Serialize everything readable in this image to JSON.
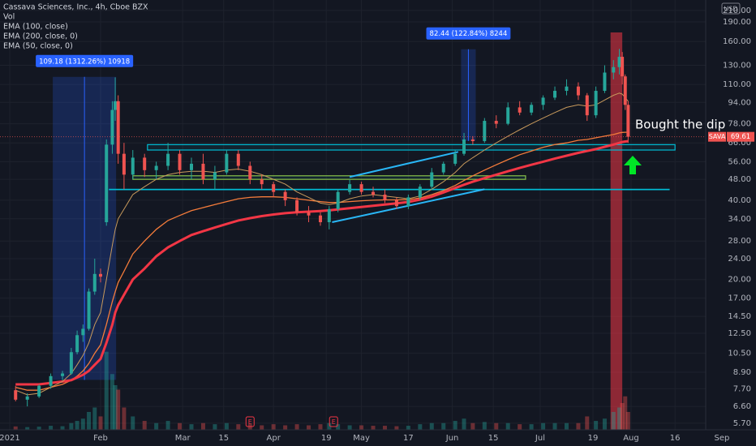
{
  "chart_data": {
    "type": "candlestick",
    "title": "Cassava Sciences, Inc., 4h, Cboe BZX",
    "volume_label": "Vol",
    "currency": "USD",
    "symbol": "SAVA",
    "last": 69.61,
    "annotation": "Bought the dip",
    "up_color": "#26a69a",
    "down_color": "#ef5350",
    "log_scale": true,
    "ylim": [
      5.38,
      230
    ],
    "xlim": [
      -3.32,
      254.63
    ],
    "vlim": [
      0,
      40
    ],
    "yticks": [
      {
        "value": 210,
        "label": "210.00"
      },
      {
        "value": 190,
        "label": "190.00"
      },
      {
        "value": 160,
        "label": "160.00"
      },
      {
        "value": 130,
        "label": "130.00"
      },
      {
        "value": 110,
        "label": "110.00"
      },
      {
        "value": 94,
        "label": "94.00"
      },
      {
        "value": 78,
        "label": "78.00"
      },
      {
        "value": 66,
        "label": "66.00"
      },
      {
        "value": 56,
        "label": "56.00"
      },
      {
        "value": 48,
        "label": "48.00"
      },
      {
        "value": 40,
        "label": "40.00"
      },
      {
        "value": 34,
        "label": "34.00"
      },
      {
        "value": 28,
        "label": "28.00"
      },
      {
        "value": 24,
        "label": "24.00"
      },
      {
        "value": 20,
        "label": "20.00"
      },
      {
        "value": 17,
        "label": "17.00"
      },
      {
        "value": 14.5,
        "label": "14.50"
      },
      {
        "value": 12.5,
        "label": "12.50"
      },
      {
        "value": 10.5,
        "label": "10.50"
      },
      {
        "value": 8.9,
        "label": "8.90"
      },
      {
        "value": 7.7,
        "label": "7.70"
      },
      {
        "value": 6.6,
        "label": "6.60"
      },
      {
        "value": 5.7,
        "label": "5.70"
      }
    ],
    "xticks": [
      {
        "value": 0,
        "label": "2021"
      },
      {
        "value": 31,
        "label": "Feb"
      },
      {
        "value": 59,
        "label": "Mar"
      },
      {
        "value": 73,
        "label": "15"
      },
      {
        "value": 90,
        "label": "Apr"
      },
      {
        "value": 108,
        "label": "19"
      },
      {
        "value": 120,
        "label": "May"
      },
      {
        "value": 136,
        "label": "17"
      },
      {
        "value": 151,
        "label": "Jun"
      },
      {
        "value": 165,
        "label": "15"
      },
      {
        "value": 181,
        "label": "Jul"
      },
      {
        "value": 199,
        "label": "19"
      },
      {
        "value": 212,
        "label": "Aug"
      },
      {
        "value": 227,
        "label": "16"
      },
      {
        "value": 243,
        "label": "Sep"
      }
    ],
    "x": [
      2,
      6,
      10,
      14,
      18,
      21,
      23,
      25,
      27,
      29,
      31,
      33,
      35,
      36,
      37,
      39,
      42,
      46,
      50,
      54,
      58,
      62,
      66,
      70,
      74,
      78,
      82,
      86,
      90,
      94,
      98,
      102,
      106,
      109,
      112,
      116,
      120,
      124,
      128,
      132,
      136,
      140,
      144,
      148,
      152,
      155,
      158,
      162,
      166,
      170,
      174,
      178,
      182,
      186,
      190,
      194,
      197,
      200,
      203,
      206,
      208,
      209,
      210,
      211
    ],
    "open": [
      7.6,
      7.0,
      7.2,
      7.9,
      8.6,
      8.8,
      10.6,
      12.3,
      13.0,
      18.0,
      21.0,
      33,
      65,
      88,
      95,
      60,
      50,
      58,
      52,
      54,
      60,
      52,
      55,
      48,
      51,
      60,
      54,
      48,
      46,
      43,
      40,
      36,
      35,
      33,
      37,
      43,
      46,
      43,
      42,
      40,
      38,
      41,
      45,
      51,
      55,
      60,
      68,
      67,
      80,
      78,
      90,
      86,
      92,
      98,
      104,
      108,
      100,
      84,
      104,
      122,
      128,
      140,
      118,
      92
    ],
    "high": [
      7.9,
      7.4,
      8.0,
      8.8,
      9.0,
      11.0,
      12.8,
      13.5,
      18.5,
      24.0,
      22.0,
      68,
      95,
      117,
      100,
      66,
      62,
      60,
      56,
      66,
      62,
      58,
      60,
      54,
      62,
      62,
      56,
      50,
      47,
      44,
      41,
      38,
      36,
      38,
      44,
      48,
      47,
      45,
      44,
      41,
      42,
      46,
      53,
      56,
      62,
      72,
      70,
      82,
      84,
      94,
      95,
      94,
      100,
      108,
      115,
      112,
      102,
      108,
      130,
      136,
      150,
      146,
      120,
      95
    ],
    "low": [
      6.9,
      6.6,
      7.1,
      7.7,
      8.3,
      8.7,
      10.4,
      11.6,
      12.8,
      17.5,
      19.5,
      32,
      60,
      80,
      55,
      44,
      48,
      49,
      48,
      52,
      50,
      48,
      46,
      44,
      50,
      52,
      46,
      44,
      41,
      38,
      35,
      33,
      32,
      31,
      36,
      42,
      42,
      41,
      39,
      37,
      37,
      40,
      44,
      50,
      54,
      59,
      65,
      66,
      75,
      77,
      84,
      84,
      88,
      96,
      100,
      96,
      80,
      82,
      102,
      115,
      120,
      110,
      88,
      66
    ],
    "close": [
      7.0,
      7.2,
      7.9,
      8.6,
      8.8,
      10.6,
      12.3,
      13.0,
      18.0,
      21.0,
      20.5,
      65,
      88,
      95,
      60,
      50,
      58,
      52,
      54,
      60,
      52,
      55,
      48,
      51,
      60,
      54,
      48,
      46,
      43,
      40,
      36,
      35,
      33,
      37,
      43,
      46,
      43,
      42,
      40,
      38,
      41,
      45,
      51,
      55,
      60,
      68,
      67,
      80,
      78,
      90,
      86,
      92,
      98,
      104,
      108,
      100,
      84,
      104,
      122,
      128,
      140,
      118,
      92,
      69.61
    ],
    "volume": [
      1.5,
      1.2,
      1.4,
      1.8,
      1.6,
      3,
      4,
      5,
      8,
      10,
      6,
      35,
      25,
      20,
      18,
      10,
      6,
      4,
      3,
      4,
      3,
      2.5,
      3,
      2.5,
      3,
      2.5,
      2.5,
      2,
      2.5,
      2,
      2.5,
      2,
      2.5,
      3,
      2.5,
      2,
      2,
      1.8,
      1.8,
      1.6,
      1.8,
      2.5,
      3,
      3,
      4,
      5,
      3,
      3.5,
      3,
      3,
      2.5,
      2.5,
      3,
      3,
      3,
      3,
      6,
      4,
      5,
      8,
      10,
      12,
      15,
      8
    ],
    "series": [
      {
        "name": "EMA (100, close)",
        "color": "#f57c3b",
        "width": 1.3,
        "values": [
          7.8,
          7.6,
          7.6,
          7.8,
          8.0,
          8.3,
          8.6,
          9.0,
          9.6,
          10.5,
          11.3,
          13.5,
          16.5,
          18,
          19.5,
          21.5,
          25,
          28,
          31,
          33.5,
          35,
          36.5,
          37.5,
          38.5,
          39.5,
          40.5,
          41,
          41.2,
          41.2,
          41,
          40.5,
          40,
          39.5,
          39.2,
          39.2,
          39.5,
          39.8,
          40,
          40.1,
          40.1,
          40.2,
          40.8,
          42,
          43.5,
          45.5,
          47.5,
          49.5,
          52,
          54.5,
          57,
          59.5,
          61.5,
          63.5,
          65,
          66,
          67.5,
          68,
          69,
          70,
          71,
          72,
          72.3,
          72.4,
          72.4
        ]
      },
      {
        "name": "EMA (200, close, 0)",
        "color": "#f23645",
        "width": 3,
        "values": [
          8.0,
          8.0,
          8.0,
          8.1,
          8.2,
          8.3,
          8.5,
          8.7,
          9.0,
          9.5,
          10.0,
          11.5,
          13.5,
          15,
          16,
          17.5,
          20,
          22,
          24.5,
          26.5,
          28,
          29.5,
          30.5,
          31.5,
          32.5,
          33.5,
          34.2,
          34.8,
          35.3,
          35.7,
          36,
          36.2,
          36.4,
          36.6,
          36.9,
          37.3,
          37.7,
          38.1,
          38.5,
          38.9,
          39.4,
          40.2,
          41.3,
          42.8,
          44.5,
          45.8,
          47,
          48.5,
          50,
          51.5,
          53,
          54.5,
          56,
          57.5,
          59,
          60.5,
          61.5,
          62.5,
          63.8,
          65,
          66,
          66.5,
          66.8,
          67
        ]
      },
      {
        "name": "EMA (50, close, 0)",
        "color": "#c89a5c",
        "width": 1,
        "values": [
          7.6,
          7.3,
          7.4,
          7.8,
          8.2,
          8.8,
          9.5,
          10.3,
          11.5,
          13.5,
          15,
          20,
          27,
          31,
          34,
          37,
          42,
          45,
          48,
          50,
          51,
          51.5,
          51.5,
          51,
          52,
          52.5,
          51.5,
          50,
          48,
          46,
          43,
          41,
          39,
          38.5,
          39,
          40.5,
          41.5,
          42,
          41.5,
          41,
          40.5,
          41.5,
          44,
          47,
          51,
          55,
          58,
          62,
          66,
          70,
          74,
          78,
          82,
          86,
          90,
          92,
          91,
          92,
          96,
          100,
          102,
          101,
          98,
          95
        ]
      }
    ],
    "levels": [
      {
        "x": [
          47,
          227
        ],
        "y": [
          62,
          65
        ],
        "color": "#00bcd4"
      },
      {
        "x": [
          42,
          176
        ],
        "y": [
          48,
          49.5
        ],
        "color": "#8bc34a"
      },
      {
        "x": [
          34,
          225
        ],
        "y": [
          44,
          44
        ],
        "color": "#00bcd4"
      }
    ],
    "trendlines": [
      {
        "x": [
          116,
          153
        ],
        "y": [
          49,
          61
        ]
      },
      {
        "x": [
          110,
          162
        ],
        "y": [
          33,
          44
        ]
      }
    ],
    "measures": [
      {
        "label": "109.18 (1312.26%) 10918",
        "x": [
          14.7,
          36.3
        ],
        "y": [
          8.32,
          117.5
        ]
      },
      {
        "label": "82.44 (122.84%) 8244",
        "x": [
          154,
          159
        ],
        "y": [
          67.11,
          149.55
        ]
      }
    ],
    "highlight": {
      "x": [
        205,
        209
      ]
    },
    "earnings": [
      {
        "x": 82,
        "label": "E"
      },
      {
        "x": 110.5,
        "label": "E"
      }
    ]
  }
}
